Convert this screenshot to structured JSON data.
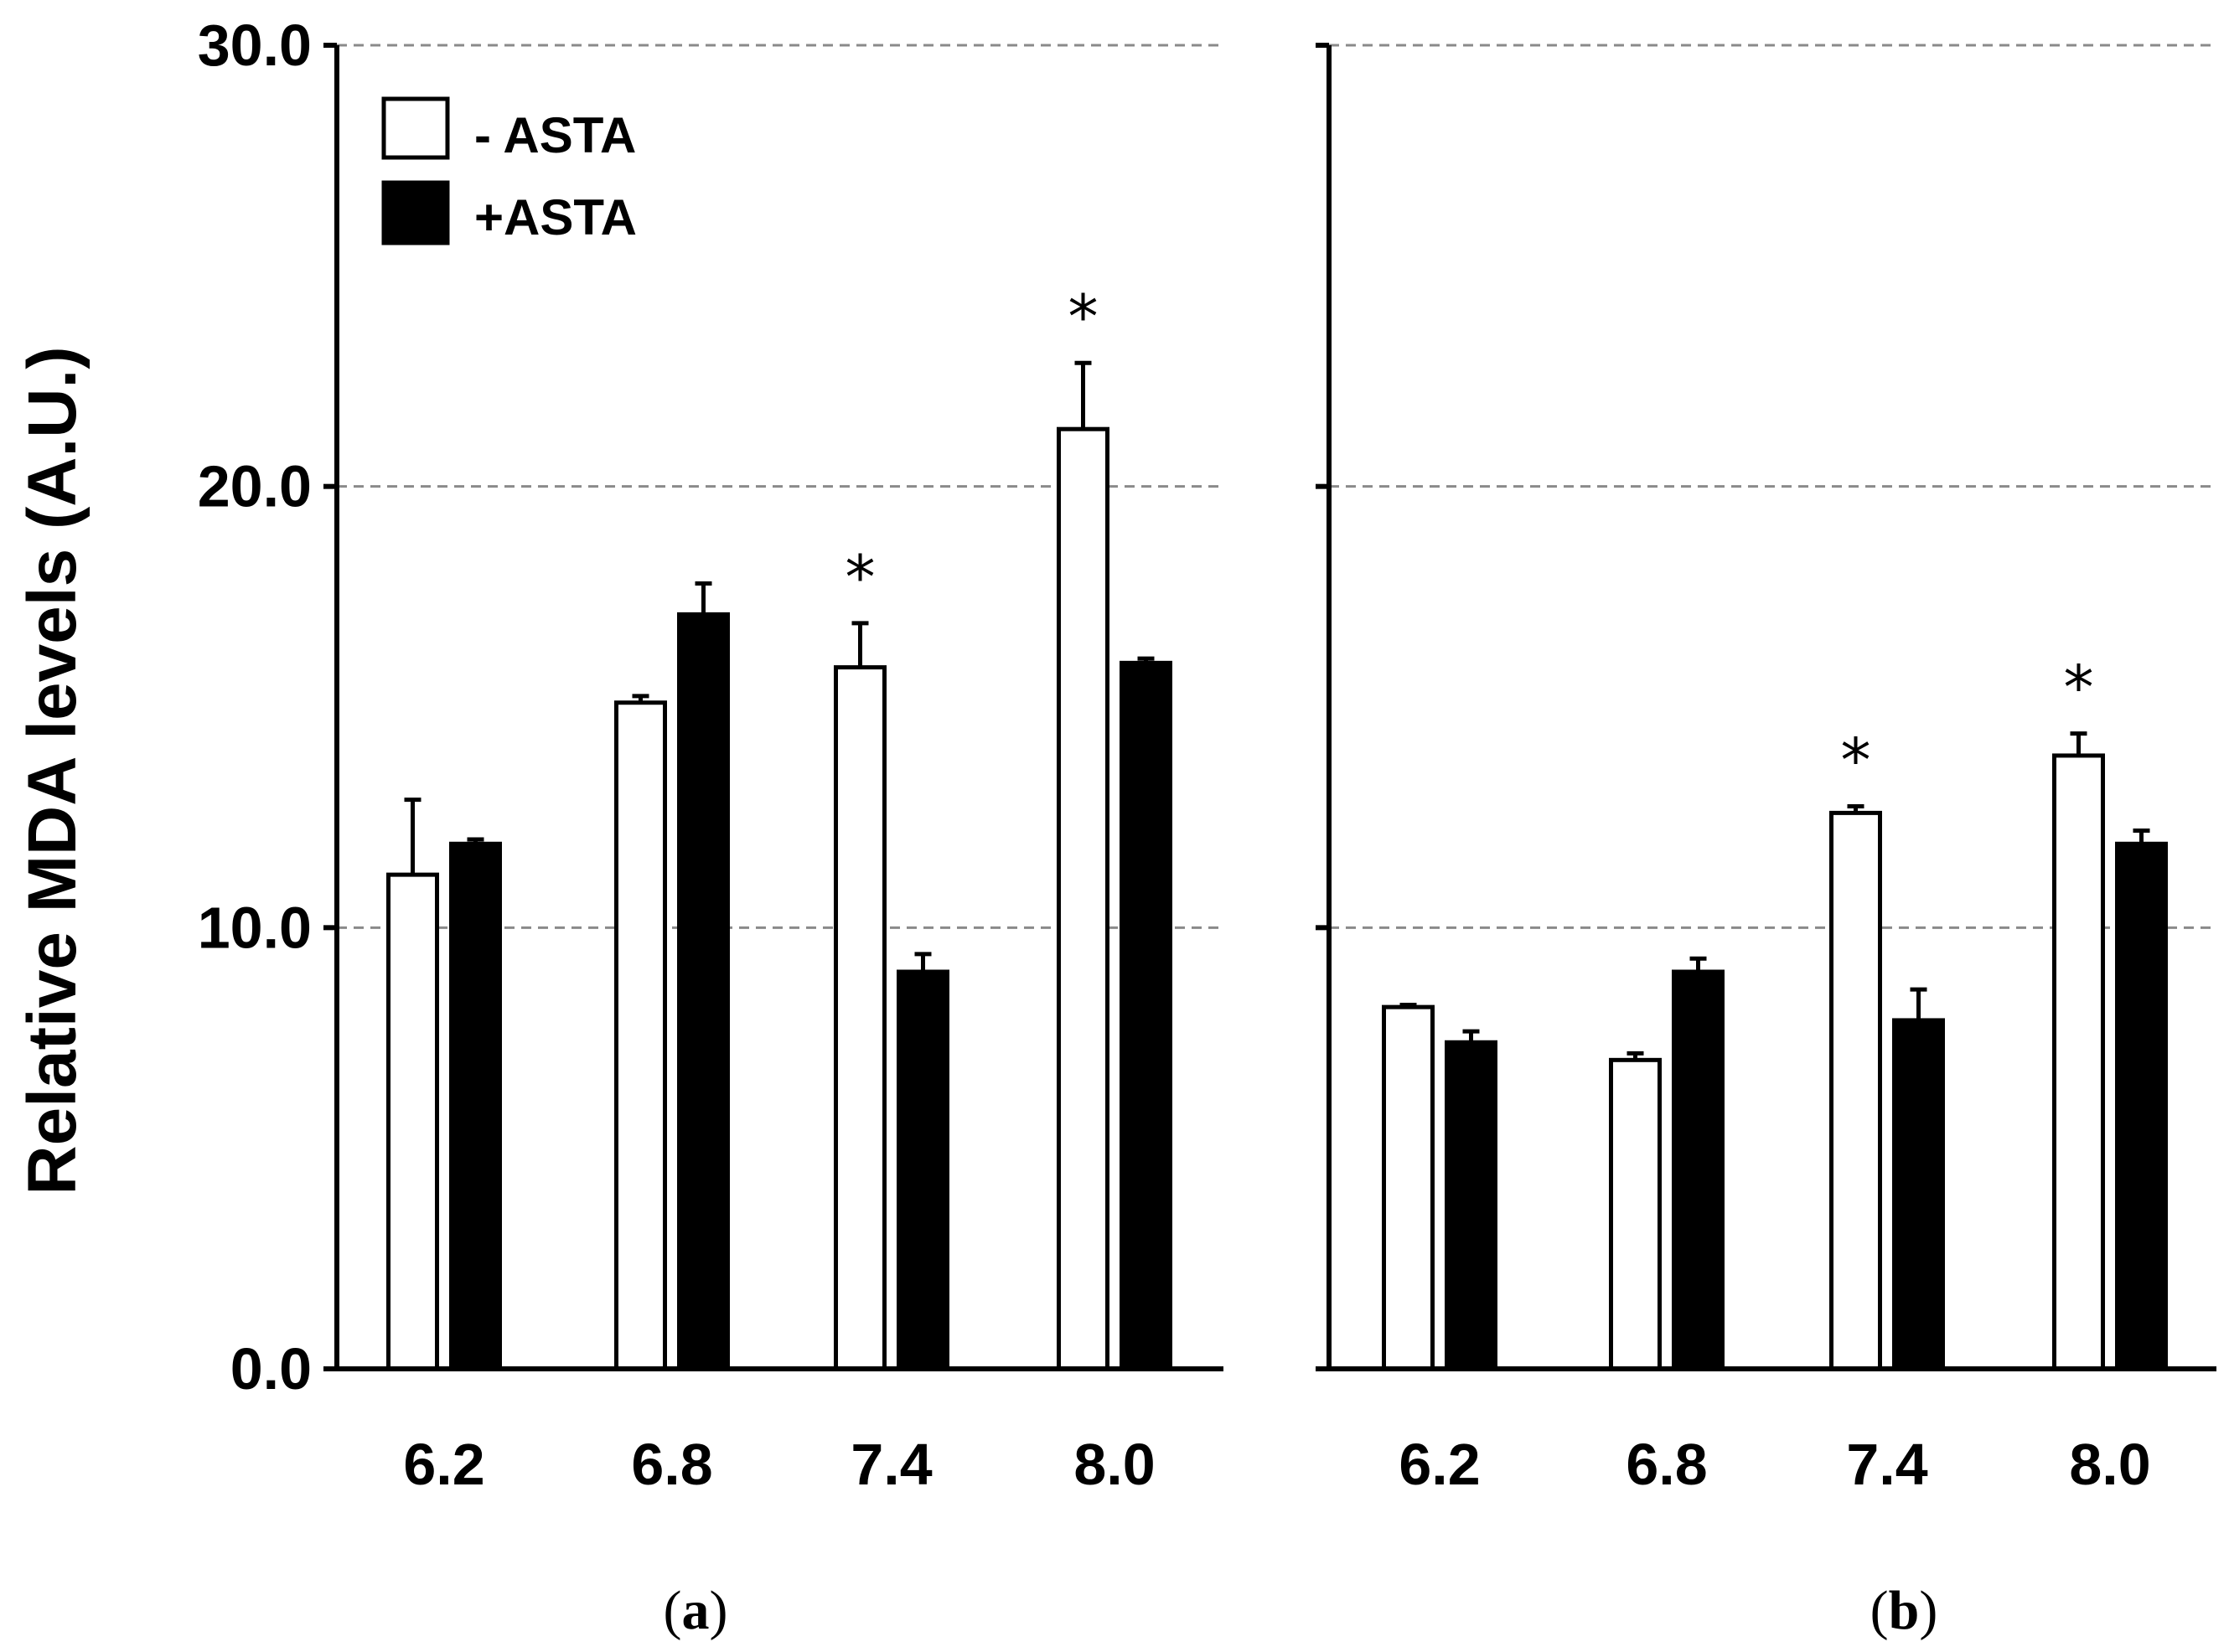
{
  "chart_data": {
    "type": "bar",
    "ylabel": "Relative MDA levels (A.U.)",
    "ylim": [
      0,
      30
    ],
    "yticks": [
      "0.0",
      "10.0",
      "20.0",
      "30.0"
    ],
    "gridlines": "dashed at 10, 20, 30",
    "legend": {
      "placement": "top-left",
      "entries": [
        {
          "label": "- ASTA",
          "fill": "#ffffff"
        },
        {
          "label": "+ASTA",
          "fill": "#000000"
        }
      ]
    },
    "panels": [
      {
        "label_open": "(",
        "label": "a",
        "label_close": ")",
        "categories": [
          "6.2",
          "6.8",
          "7.4",
          "8.0"
        ],
        "series": [
          {
            "name": "- ASTA",
            "values": [
              11.2,
              15.1,
              15.9,
              21.3
            ],
            "errors": [
              1.7,
              0.15,
              1.0,
              1.5
            ]
          },
          {
            "name": "+ASTA",
            "values": [
              11.9,
              17.1,
              9.0,
              16.0
            ],
            "errors": [
              0.1,
              0.7,
              0.4,
              0.1
            ]
          }
        ],
        "significance": [
          "",
          "",
          "*",
          "*"
        ]
      },
      {
        "label_open": "(",
        "label": "b",
        "label_close": ")",
        "categories": [
          "6.2",
          "6.8",
          "7.4",
          "8.0"
        ],
        "series": [
          {
            "name": "- ASTA",
            "values": [
              8.2,
              7.0,
              12.6,
              13.9
            ],
            "errors": [
              0.05,
              0.15,
              0.15,
              0.5
            ]
          },
          {
            "name": "+ASTA",
            "values": [
              7.4,
              9.0,
              7.9,
              11.9
            ],
            "errors": [
              0.25,
              0.3,
              0.7,
              0.3
            ]
          }
        ],
        "significance": [
          "",
          "",
          "*",
          "*"
        ]
      }
    ]
  }
}
